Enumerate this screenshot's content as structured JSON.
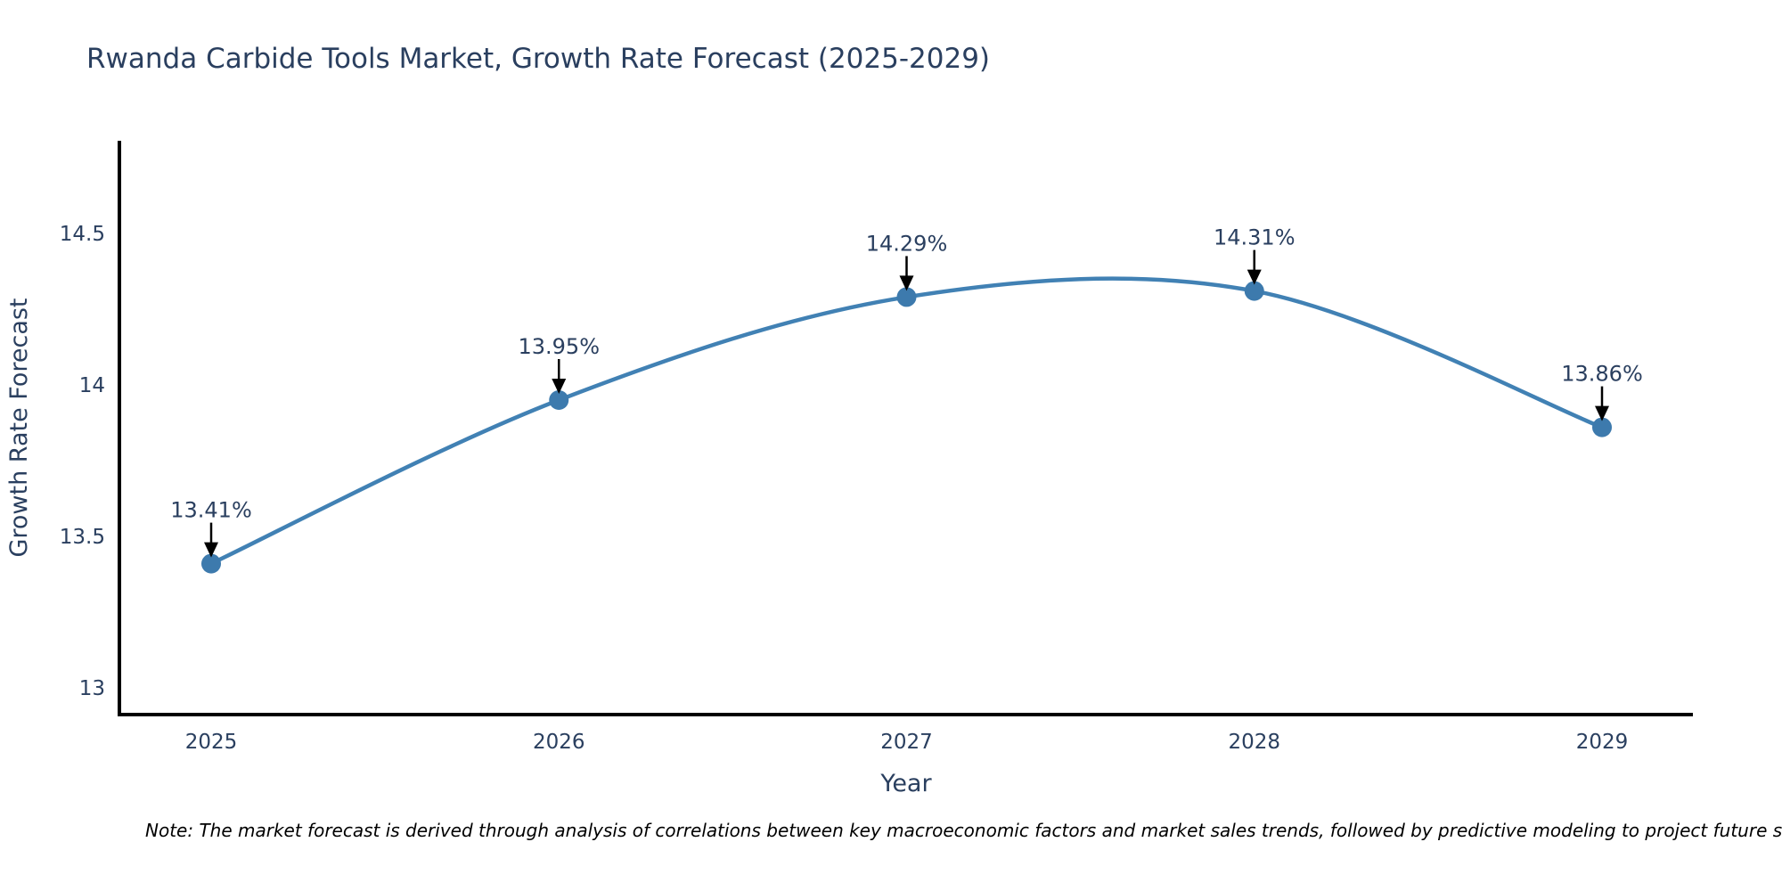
{
  "page": {
    "background": "#ffffff"
  },
  "chart_data": {
    "type": "line",
    "title": "Rwanda Carbide Tools Market, Growth Rate Forecast (2025-2029)",
    "xlabel": "Year",
    "ylabel": "Growth Rate Forecast",
    "categories": [
      "2025",
      "2026",
      "2027",
      "2028",
      "2029"
    ],
    "values": [
      13.41,
      13.95,
      14.29,
      14.31,
      13.86
    ],
    "point_labels": [
      "13.41%",
      "13.95%",
      "14.29%",
      "14.31%",
      "13.86%"
    ],
    "y_ticks": [
      13,
      13.5,
      14,
      14.5
    ],
    "y_tick_labels": [
      "13",
      "13.5",
      "14",
      "14.5"
    ],
    "ylim": [
      12.91,
      14.81
    ],
    "line_shape": "spline",
    "grid": false,
    "legend_position": "none",
    "colors": {
      "line": "#4181b4",
      "marker": "#3d7aad",
      "axis": "#000000",
      "text": "#2a3f5f",
      "annotation_text": "#2a3f5f",
      "annotation_arrow": "#000000",
      "note_text": "#000000"
    }
  },
  "note": {
    "text": "Note: The market forecast is derived through analysis of correlations between key macroeconomic factors and market sales trends, followed by predictive modeling to project future sal"
  }
}
